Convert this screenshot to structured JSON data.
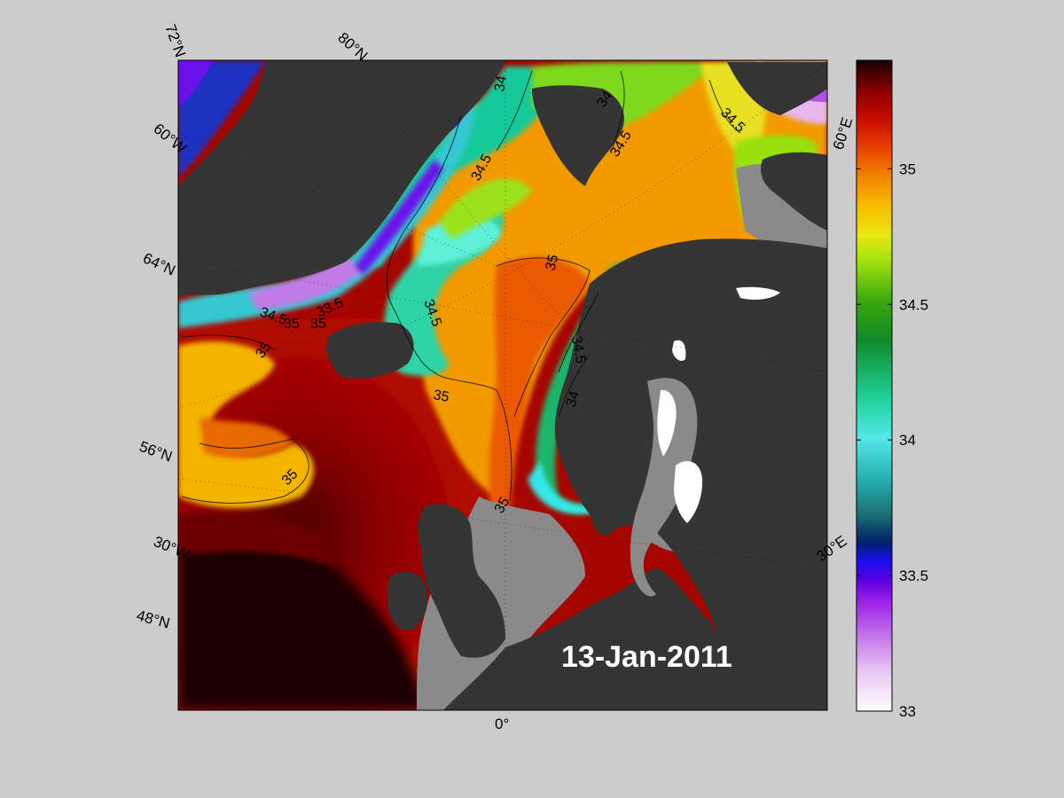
{
  "map": {
    "date_label": "13-Jan-2011",
    "lat_labels": [
      "72°N",
      "80°N",
      "64°N",
      "56°N",
      "48°N"
    ],
    "lon_labels": [
      "60°W",
      "30°W",
      "0°",
      "30°E",
      "60°E"
    ],
    "contour_labels": [
      "34",
      "34",
      "34",
      "34.5",
      "34.5",
      "34.5",
      "34.5",
      "34.5",
      "34.5",
      "33.5",
      "35",
      "35",
      "35",
      "35",
      "35",
      "35",
      "35"
    ],
    "colors": {
      "land": "#353535",
      "shelf": "#8a8a8a",
      "background": "#cccccc",
      "ice": "#ffffff"
    }
  },
  "colorbar": {
    "min": 33,
    "max": 35.4,
    "tick_labels": [
      "35",
      "34.5",
      "34",
      "33.5",
      "33"
    ],
    "tick_values": [
      35,
      34.5,
      34,
      33.5,
      33
    ],
    "colormap": [
      "#ffffff",
      "#e8c8f2",
      "#c06ee8",
      "#9a1ee6",
      "#5a00e0",
      "#1a10f0",
      "#00206a",
      "#1b6c70",
      "#27b3b3",
      "#54e8e8",
      "#1ed29a",
      "#0f8a2a",
      "#3aa80c",
      "#a0e010",
      "#e8e810",
      "#f7b800",
      "#f07800",
      "#e63a00",
      "#c80a00",
      "#900000",
      "#4a0000",
      "#120000"
    ]
  }
}
